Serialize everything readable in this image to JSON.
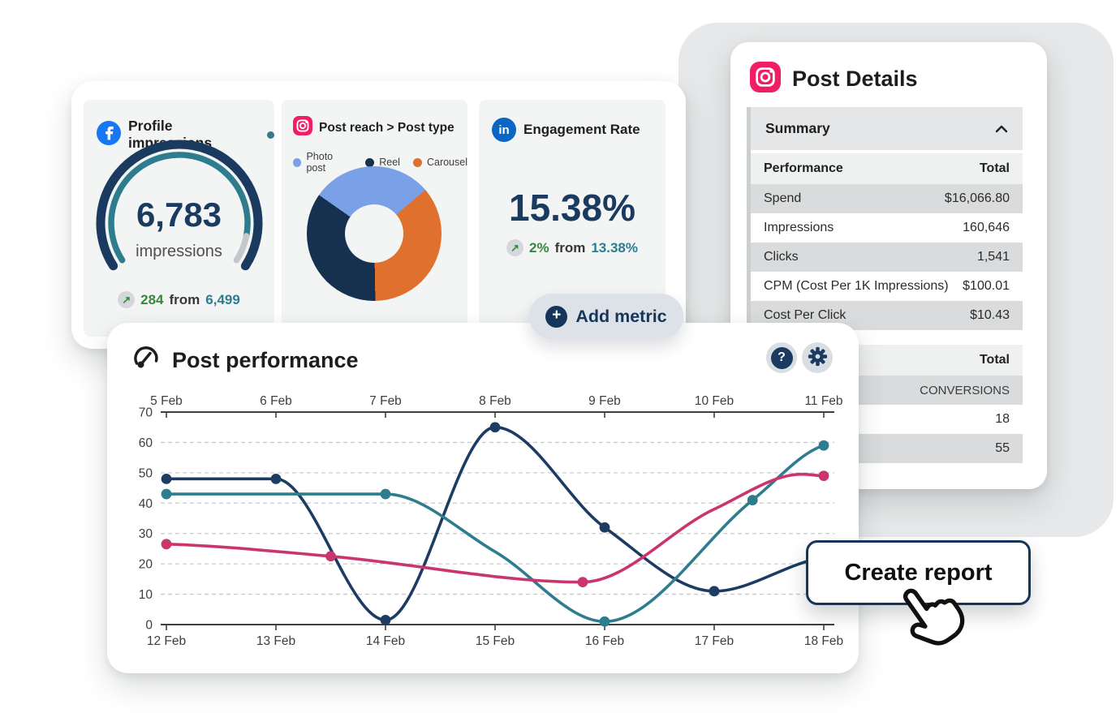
{
  "colors": {
    "navy": "#1b3a5f",
    "teal": "#2e7d8f",
    "pink": "#c9366f",
    "green": "#35893b",
    "facebook_blue": "#1877f2",
    "linkedin_blue": "#0a66c2",
    "instagram_pink": "#f01f63",
    "photo_post_blue": "#7aa0e8",
    "reel_navy": "#16304f",
    "carousel_orange": "#e0702d",
    "backdrop_grey": "#e7e8e9",
    "row_grey": "#d9dbdc"
  },
  "metrics": {
    "profile_impressions": {
      "title": "Profile impressions",
      "value": "6,783",
      "unit": "impressions",
      "delta": "284",
      "from_label": "from",
      "baseline": "6,499"
    },
    "post_reach": {
      "title": "Post reach > Post type",
      "legend": [
        {
          "label": "Photo post",
          "color": "#7aa0e8"
        },
        {
          "label": "Reel",
          "color": "#16304f"
        },
        {
          "label": "Carousel",
          "color": "#e0702d"
        }
      ]
    },
    "engagement_rate": {
      "title": "Engagement Rate",
      "value": "15.38%",
      "delta": "2%",
      "from_label": "from",
      "baseline": "13.38%"
    }
  },
  "add_metric_label": "Add metric",
  "post_details": {
    "title": "Post Details",
    "summary_header": "Summary",
    "table1": {
      "col_label": "Performance",
      "col_value": "Total",
      "rows": [
        [
          "Spend",
          "$16,066.80"
        ],
        [
          "Impressions",
          "160,646"
        ],
        [
          "Clicks",
          "1,541"
        ],
        [
          "CPM (Cost Per 1K Impressions)",
          "$100.01"
        ],
        [
          "Cost Per Click",
          "$10.43"
        ]
      ]
    },
    "table2": {
      "col_value": "Total",
      "rows": [
        "CONVERSIONS",
        "18",
        "55"
      ]
    }
  },
  "post_performance_title": "Post performance",
  "create_report_label": "Create report",
  "chart_data": [
    {
      "type": "gauge",
      "title": "Profile impressions",
      "value": 6783,
      "unit": "impressions",
      "change": 284,
      "previous": 6499,
      "percent_filled": 91
    },
    {
      "type": "pie",
      "title": "Post reach > Post type",
      "donut": true,
      "start_angle_deg": -55,
      "slices": [
        {
          "label": "Photo post",
          "pct": 29,
          "color": "#7aa0e8"
        },
        {
          "label": "Carousel",
          "pct": 36,
          "color": "#e0702d"
        },
        {
          "label": "Reel",
          "pct": 35,
          "color": "#16304f"
        }
      ]
    },
    {
      "type": "line",
      "title": "Post performance",
      "ylim": [
        0,
        70
      ],
      "y_ticks": [
        0,
        10,
        20,
        30,
        40,
        50,
        60,
        70
      ],
      "x_top_labels": [
        "5 Feb",
        "6 Feb",
        "7 Feb",
        "8 Feb",
        "9 Feb",
        "10 Feb",
        "11 Feb"
      ],
      "x_bottom_labels": [
        "12 Feb",
        "13 Feb",
        "14 Feb",
        "15 Feb",
        "16 Feb",
        "17 Feb",
        "18 Feb"
      ],
      "grid": "dashed-horizontal",
      "series": [
        {
          "name": "navy",
          "color": "#1c3c63",
          "points": [
            [
              0,
              48,
              1
            ],
            [
              1,
              48,
              1
            ],
            [
              2,
              1.5,
              1
            ],
            [
              3,
              65,
              1
            ],
            [
              4,
              32,
              1
            ],
            [
              5,
              11,
              1
            ],
            [
              6,
              22,
              0
            ]
          ]
        },
        {
          "name": "teal",
          "color": "#2e7d8f",
          "points": [
            [
              0,
              43,
              1
            ],
            [
              1,
              43,
              0
            ],
            [
              2,
              43,
              1
            ],
            [
              3,
              24,
              0
            ],
            [
              4,
              1,
              1
            ],
            [
              5.35,
              41,
              1
            ],
            [
              6,
              59,
              1
            ]
          ]
        },
        {
          "name": "pink",
          "color": "#c9366f",
          "points": [
            [
              0,
              26.5,
              1
            ],
            [
              1.5,
              22.5,
              1
            ],
            [
              3.8,
              14,
              1
            ],
            [
              5,
              38,
              0
            ],
            [
              5.8,
              49.5,
              0
            ],
            [
              6,
              49,
              1
            ]
          ]
        }
      ]
    }
  ]
}
